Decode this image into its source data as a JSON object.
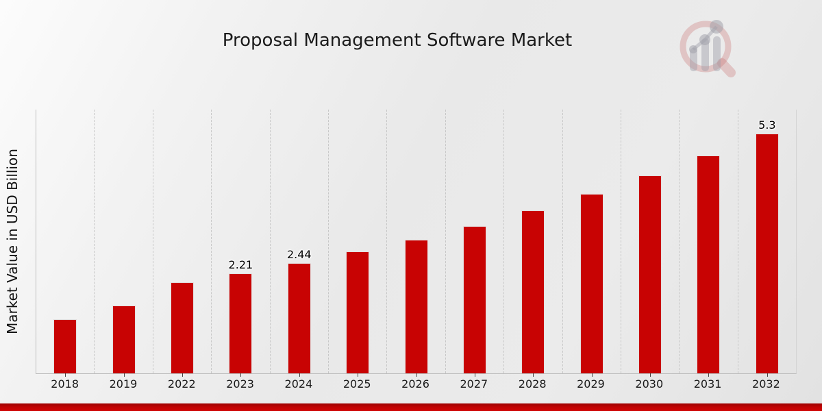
{
  "title": "Proposal Management Software Market",
  "y_axis_label": "Market Value in USD Billion",
  "colors": {
    "bar": "#c80303",
    "footer_strip": "#c30303",
    "background": "#e9e9e9"
  },
  "logo": {
    "name": "magnifier-growth-chart-logo"
  },
  "chart_data": {
    "type": "bar",
    "title": "Proposal Management Software Market",
    "xlabel": "",
    "ylabel": "Market Value in USD Billion",
    "categories": [
      "2018",
      "2019",
      "2022",
      "2023",
      "2024",
      "2025",
      "2026",
      "2027",
      "2028",
      "2029",
      "2030",
      "2031",
      "2032"
    ],
    "values": [
      1.2,
      1.5,
      2.01,
      2.21,
      2.44,
      2.69,
      2.96,
      3.26,
      3.6,
      3.96,
      4.38,
      4.81,
      5.3
    ],
    "bar_labels": [
      "",
      "",
      "",
      "2.21",
      "2.44",
      "",
      "",
      "",
      "",
      "",
      "",
      "",
      "5.3"
    ],
    "unit": "USD Billion",
    "ylim": [
      0,
      5.83
    ],
    "grid": "vertical-dashed",
    "legend": "none"
  }
}
